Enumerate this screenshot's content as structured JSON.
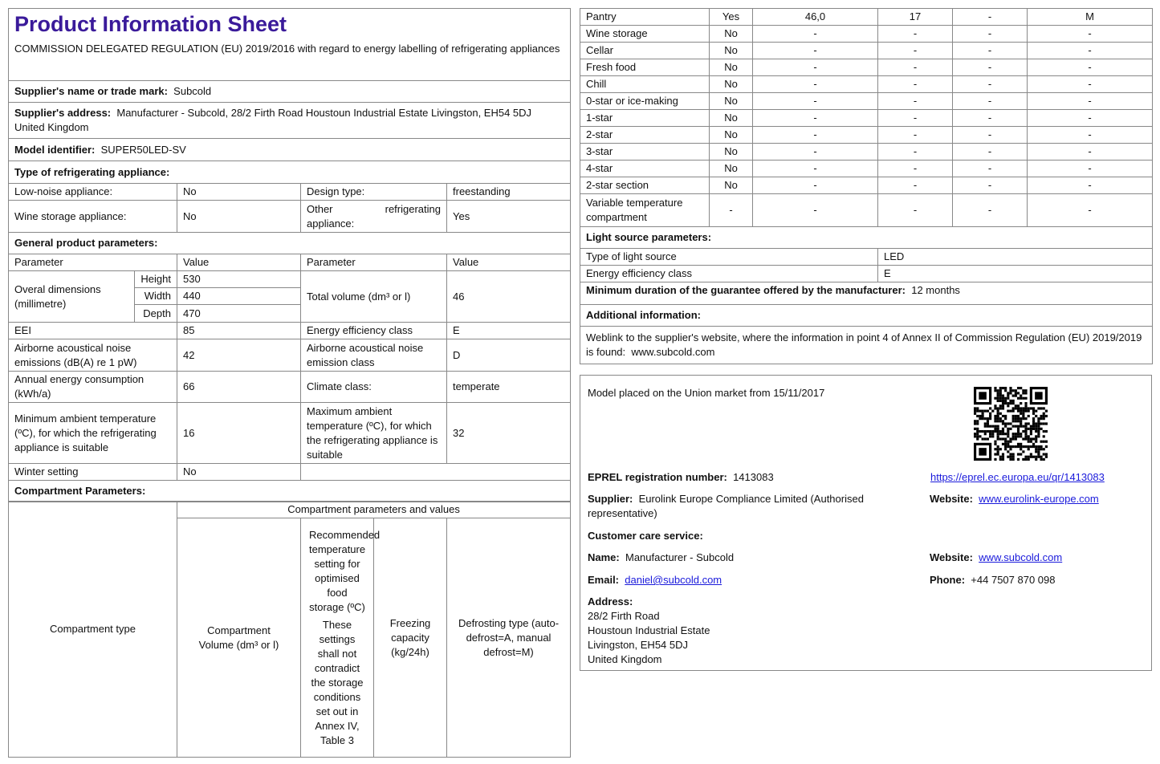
{
  "header": {
    "title": "Product Information Sheet",
    "subtitle": "COMMISSION DELEGATED REGULATION (EU) 2019/2016 with regard to energy labelling of refrigerating appliances"
  },
  "supplier_name": {
    "label": "Supplier's name or trade mark:",
    "value": "Subcold"
  },
  "supplier_address": {
    "label": "Supplier's address:",
    "value": "Manufacturer - Subcold, 28/2 Firth Road Houstoun Industrial Estate Livingston, EH54 5DJ United Kingdom"
  },
  "model": {
    "label": "Model identifier:",
    "value": "SUPER50LED-SV"
  },
  "type_heading": "Type of refrigerating appliance:",
  "type_rows": [
    {
      "l1": "Low-noise appliance:",
      "v1": "No",
      "l2": "Design type:",
      "v2": "freestanding"
    },
    {
      "l1": "Wine storage appliance:",
      "v1": "No",
      "l2": "Other refrigerating appliance:",
      "v2": "Yes"
    }
  ],
  "general_heading": "General product parameters:",
  "gp": {
    "h_param": "Parameter",
    "h_value": "Value",
    "dims_label": "Overal dimensions (millimetre)",
    "dims": [
      {
        "k": "Height",
        "v": "530"
      },
      {
        "k": "Width",
        "v": "440"
      },
      {
        "k": "Depth",
        "v": "470"
      }
    ],
    "volume_label": "Total volume (dm³ or l)",
    "volume": "46",
    "rows": [
      {
        "l1": "EEI",
        "v1": "85",
        "l2": "Energy efficiency class",
        "v2": "E"
      },
      {
        "l1": "Airborne acoustical noise emissions (dB(A) re 1 pW)",
        "v1": "42",
        "l2": "Airborne acoustical noise emission class",
        "v2": "D"
      },
      {
        "l1": "Annual energy consumption (kWh/a)",
        "v1": "66",
        "l2": "Climate class:",
        "v2": "temperate"
      },
      {
        "l1": "Minimum ambient temperature (ºC), for which the refrigerating appliance is suitable",
        "v1": "16",
        "l2": "Maximum ambient temperature (ºC), for which the refrigerating appliance is suitable",
        "v2": "32"
      },
      {
        "l1": "Winter setting",
        "v1": "No",
        "l2": "",
        "v2": ""
      }
    ]
  },
  "compartment_heading": "Compartment Parameters:",
  "comp_header": {
    "type": "Compartment type",
    "group": "Compartment parameters and values",
    "volume": "Compartment Volume (dm³ or l)",
    "temp": "Recommended temperature setting for optimised food storage (ºC)",
    "temp_note": "These settings shall not contradict the storage conditions set out in Annex IV, Table 3",
    "freezing": "Freezing capacity (kg/24h)",
    "defrost": "Defrosting type (auto-defrost=A, manual defrost=M)"
  },
  "compartments": [
    [
      "Pantry",
      "Yes",
      "46,0",
      "17",
      "-",
      "M"
    ],
    [
      "Wine storage",
      "No",
      "-",
      "-",
      "-",
      "-"
    ],
    [
      "Cellar",
      "No",
      "-",
      "-",
      "-",
      "-"
    ],
    [
      "Fresh food",
      "No",
      "-",
      "-",
      "-",
      "-"
    ],
    [
      "Chill",
      "No",
      "-",
      "-",
      "-",
      "-"
    ],
    [
      "0-star or ice-making",
      "No",
      "-",
      "-",
      "-",
      "-"
    ],
    [
      "1-star",
      "No",
      "-",
      "-",
      "-",
      "-"
    ],
    [
      "2-star",
      "No",
      "-",
      "-",
      "-",
      "-"
    ],
    [
      "3-star",
      "No",
      "-",
      "-",
      "-",
      "-"
    ],
    [
      "4-star",
      "No",
      "-",
      "-",
      "-",
      "-"
    ],
    [
      "2-star section",
      "No",
      "-",
      "-",
      "-",
      "-"
    ],
    [
      "Variable temperature compartment",
      "-",
      "-",
      "-",
      "-",
      "-"
    ]
  ],
  "light": {
    "heading": "Light source parameters:",
    "type_label": "Type of light source",
    "type": "LED",
    "class_label": "Energy efficiency class",
    "class": "E"
  },
  "guarantee": {
    "label": "Minimum duration of the guarantee offered by the manufacturer:",
    "value": "12 months"
  },
  "additional": {
    "heading": "Additional information:",
    "text": "Weblink to the supplier's website, where the information in point 4 of Annex II of Commission Regulation (EU) 2019/2019 is found:",
    "url": "www.subcold.com"
  },
  "market": {
    "placed": "Model placed on the Union market from 15/11/2017",
    "eprel_label": "EPREL registration number:",
    "eprel": "1413083",
    "eprel_url": "https://eprel.ec.europa.eu/qr/1413083",
    "supplier_label": "Supplier:",
    "supplier": "Eurolink Europe Compliance Limited (Authorised representative)",
    "website_label": "Website:",
    "supplier_site": "www.eurolink-europe.com",
    "care_heading": "Customer care service:",
    "name_label": "Name:",
    "name": "Manufacturer - Subcold",
    "care_site": "www.subcold.com",
    "email_label": "Email:",
    "email": "daniel@subcold.com",
    "phone_label": "Phone:",
    "phone": "+44 7507 870 098",
    "address_label": "Address:",
    "address": [
      "28/2 Firth Road",
      "Houstoun Industrial Estate",
      "Livingston, EH54 5DJ",
      "United Kingdom"
    ]
  },
  "colors": {
    "title": "#3a1a9a",
    "link": "#1a1adb"
  }
}
